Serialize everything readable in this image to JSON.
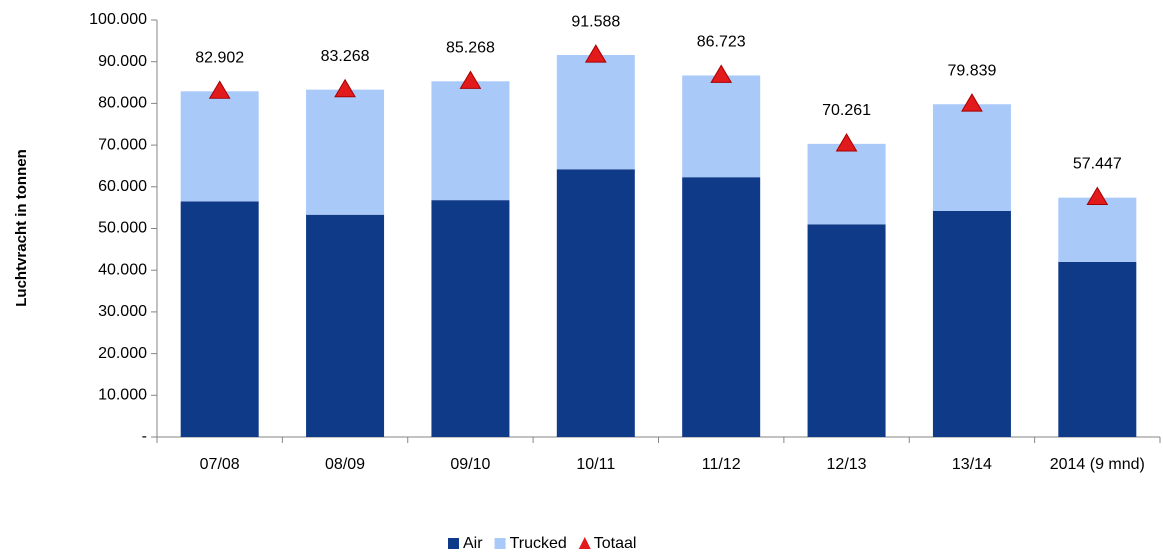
{
  "chart_data": {
    "type": "bar",
    "stacked": true,
    "y_label": "Luchtvracht in tonnen",
    "categories": [
      "07/08",
      "08/09",
      "09/10",
      "10/11",
      "11/12",
      "12/13",
      "13/14",
      "2014 (9 mnd)"
    ],
    "series": [
      {
        "name": "Air",
        "color": "#0e3a87",
        "kind": "bar",
        "values": [
          56500,
          53300,
          56800,
          64200,
          62300,
          51000,
          54200,
          42000
        ]
      },
      {
        "name": "Trucked",
        "color": "#a9c9f8",
        "kind": "bar",
        "values": [
          26400,
          30000,
          28500,
          27400,
          24400,
          19300,
          25600,
          15400
        ]
      },
      {
        "name": "Totaal",
        "color": "#e31a1c",
        "kind": "triangle",
        "values": [
          82902,
          83268,
          85268,
          91588,
          86723,
          70261,
          79839,
          57447
        ],
        "value_labels": [
          "82.902",
          "83.268",
          "85.268",
          "91.588",
          "86.723",
          "70.261",
          "79.839",
          "57.447"
        ]
      }
    ],
    "ylim": [
      0,
      100000
    ],
    "yticks": [
      {
        "value": 0,
        "label": "-"
      },
      {
        "value": 10000,
        "label": "10.000"
      },
      {
        "value": 20000,
        "label": "20.000"
      },
      {
        "value": 30000,
        "label": "30.000"
      },
      {
        "value": 40000,
        "label": "40.000"
      },
      {
        "value": 50000,
        "label": "50.000"
      },
      {
        "value": 60000,
        "label": "60.000"
      },
      {
        "value": 70000,
        "label": "70.000"
      },
      {
        "value": 80000,
        "label": "80.000"
      },
      {
        "value": 90000,
        "label": "90.000"
      },
      {
        "value": 100000,
        "label": "100.000"
      }
    ],
    "grid": false,
    "legend": "bottom"
  }
}
